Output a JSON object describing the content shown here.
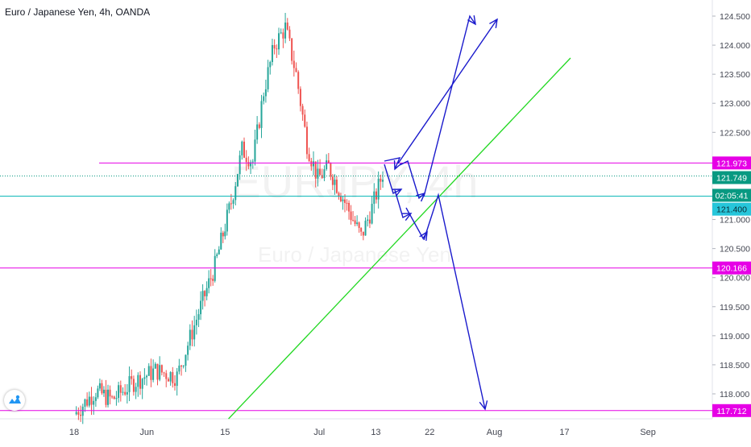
{
  "header": {
    "title": "Euro / Japanese Yen, 4h, OANDA"
  },
  "watermark": {
    "symbol": "EURJPY, 4h",
    "name": "Euro / Japanese Yen"
  },
  "colors": {
    "candle_up": "#26a69a",
    "candle_down": "#ef5350",
    "magenta_level": "#e600e6",
    "cyan_level": "#00b5b5",
    "trendline": "#22d822",
    "arrows": "#1a1acc",
    "axis_text": "#434651"
  },
  "chart_data": {
    "type": "candlestick",
    "title": "Euro / Japanese Yen, 4h, OANDA",
    "xlabel": "",
    "ylabel": "",
    "ylim": [
      117.5,
      124.75
    ],
    "x_ticks": [
      "18",
      "Jun",
      "15",
      "Jul",
      "13",
      "22",
      "Aug",
      "17",
      "Sep"
    ],
    "y_ticks": [
      "124.500",
      "124.000",
      "123.500",
      "123.000",
      "122.500",
      "121.000",
      "120.500",
      "120.000",
      "119.500",
      "119.000",
      "118.500",
      "118.000"
    ],
    "series_path": [
      [
        0,
        117.65
      ],
      [
        8,
        118.05
      ],
      [
        14,
        117.9
      ],
      [
        22,
        118.2
      ],
      [
        30,
        118.4
      ],
      [
        38,
        118.3
      ],
      [
        46,
        119.4
      ],
      [
        52,
        120.2
      ],
      [
        58,
        121.3
      ],
      [
        62,
        122.2
      ],
      [
        66,
        122.0
      ],
      [
        70,
        123.2
      ],
      [
        74,
        124.0
      ],
      [
        78,
        124.3
      ],
      [
        82,
        123.5
      ],
      [
        86,
        122.3
      ],
      [
        90,
        121.7
      ],
      [
        94,
        121.9
      ],
      [
        100,
        121.3
      ],
      [
        106,
        120.7
      ],
      [
        110,
        121.2
      ],
      [
        114,
        121.8
      ],
      [
        118,
        121.0
      ],
      [
        122,
        120.5
      ],
      [
        126,
        120.2
      ],
      [
        130,
        119.8
      ],
      [
        134,
        119.5
      ],
      [
        138,
        120.2
      ],
      [
        142,
        120.7
      ],
      [
        146,
        120.4
      ],
      [
        150,
        120.6
      ],
      [
        154,
        120.3
      ],
      [
        158,
        120.1
      ],
      [
        162,
        120.5
      ],
      [
        166,
        120.9
      ],
      [
        170,
        121.3
      ],
      [
        174,
        120.9
      ],
      [
        178,
        121.2
      ],
      [
        182,
        120.8
      ],
      [
        186,
        121.5
      ],
      [
        190,
        121.8
      ],
      [
        194,
        121.4
      ],
      [
        198,
        121.9
      ],
      [
        202,
        121.3
      ],
      [
        206,
        121.0
      ],
      [
        210,
        120.6
      ],
      [
        214,
        121.2
      ],
      [
        218,
        121.9
      ]
    ],
    "levels": [
      {
        "label": "121.973",
        "value": 121.973,
        "color": "magenta"
      },
      {
        "label": "121.749",
        "value": 121.749,
        "color": "teal-dotted",
        "current": true
      },
      {
        "label": "02:05:41",
        "value": 121.55,
        "color": "teal-countdown"
      },
      {
        "label": "121.400",
        "value": 121.4,
        "color": "cyan"
      },
      {
        "label": "120.166",
        "value": 120.166,
        "color": "magenta"
      },
      {
        "label": "117.712",
        "value": 117.712,
        "color": "magenta"
      }
    ],
    "trendline": {
      "from": [
        60,
        117.4
      ],
      "to": [
        301,
        123.8
      ]
    },
    "arrows": [
      {
        "points": [
          [
            204,
            121.95
          ],
          [
            222,
            121.5
          ],
          [
            236,
            121.45
          ]
        ]
      },
      {
        "points": [
          [
            204,
            121.95
          ],
          [
            210,
            121.2
          ],
          [
            222,
            120.7
          ]
        ]
      },
      {
        "points": [
          [
            204,
            121.95
          ],
          [
            216,
            121.8
          ],
          [
            222,
            121.3
          ]
        ]
      },
      {
        "points": [
          [
            208,
            121.95
          ],
          [
            262,
            124.4
          ]
        ]
      },
      {
        "points": [
          [
            222,
            121.3
          ],
          [
            248,
            124.5
          ]
        ]
      },
      {
        "points": [
          [
            224,
            120.7
          ],
          [
            228,
            121.4
          ],
          [
            256,
            117.8
          ]
        ]
      }
    ]
  }
}
